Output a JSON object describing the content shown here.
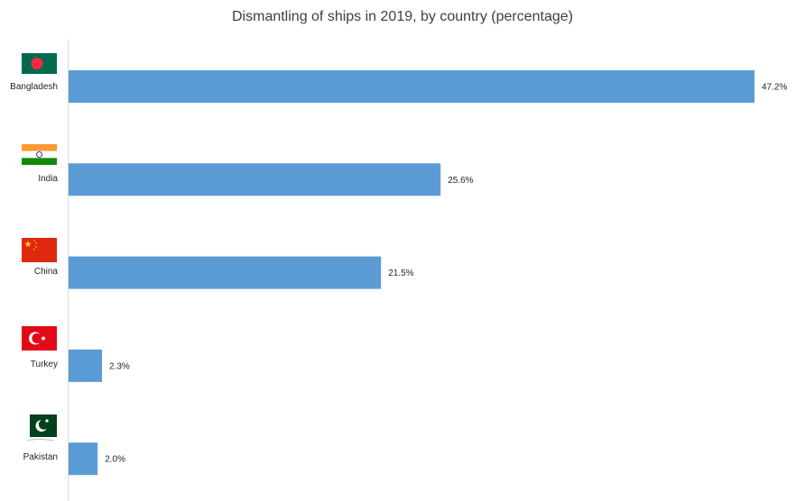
{
  "chart_data": {
    "type": "bar",
    "orientation": "horizontal",
    "title": "Dismantling of ships in 2019, by country (percentage)",
    "categories": [
      "Bangladesh",
      "India",
      "China",
      "Turkey",
      "Pakistan"
    ],
    "values": [
      47.2,
      25.6,
      21.5,
      2.3,
      2.0
    ],
    "value_labels": [
      "47.2%",
      "25.6%",
      "21.5%",
      "2.3%",
      "2.0%"
    ],
    "flags": [
      "bangladesh-flag-icon",
      "india-flag-icon",
      "china-flag-icon",
      "turkey-flag-icon",
      "pakistan-flag-icon"
    ],
    "xlim": [
      0,
      47.2
    ],
    "grid": false,
    "legend": "none",
    "bar_color": "#5b9bd5",
    "axis_color": "#d9d9d9"
  }
}
